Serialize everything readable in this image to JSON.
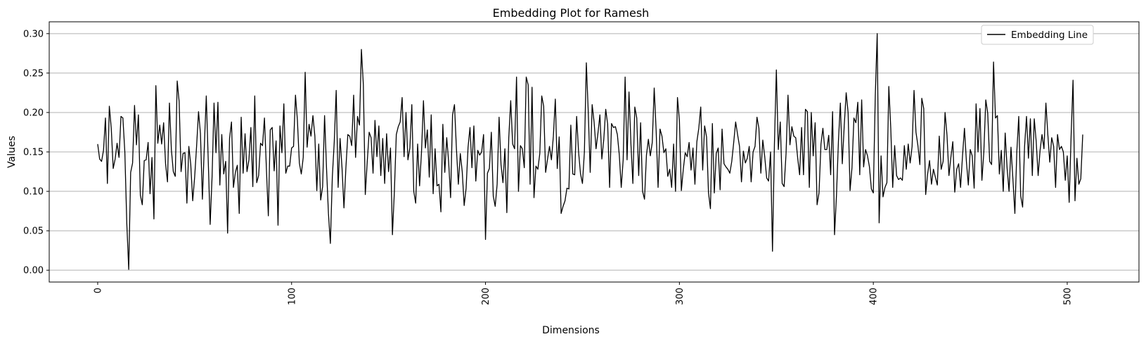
{
  "chart_data": {
    "type": "line",
    "title": "Embedding Plot for Ramesh",
    "xlabel": "Dimensions",
    "ylabel": "Values",
    "xlim": [
      -25,
      537
    ],
    "ylim": [
      -0.015,
      0.315
    ],
    "xticks": [
      0,
      100,
      200,
      300,
      400,
      500
    ],
    "xtick_labels": [
      "0",
      "100",
      "200",
      "300",
      "400",
      "500"
    ],
    "xtick_rotation": 90,
    "yticks": [
      0.0,
      0.05,
      0.1,
      0.15,
      0.2,
      0.25,
      0.3
    ],
    "ytick_labels": [
      "0.00",
      "0.05",
      "0.10",
      "0.15",
      "0.20",
      "0.25",
      "0.30"
    ],
    "grid": "horizontal",
    "legend_position": "top-right",
    "series": [
      {
        "name": "Embedding Line",
        "color": "#000000",
        "x_start": 0,
        "x_step": 1,
        "values": [
          0.16,
          0.141,
          0.138,
          0.152,
          0.193,
          0.11,
          0.208,
          0.18,
          0.129,
          0.141,
          0.161,
          0.143,
          0.195,
          0.193,
          0.15,
          0.06,
          0.001,
          0.124,
          0.136,
          0.209,
          0.159,
          0.197,
          0.095,
          0.083,
          0.139,
          0.14,
          0.162,
          0.097,
          0.143,
          0.065,
          0.234,
          0.161,
          0.184,
          0.16,
          0.187,
          0.135,
          0.112,
          0.212,
          0.153,
          0.125,
          0.119,
          0.24,
          0.214,
          0.125,
          0.148,
          0.149,
          0.085,
          0.157,
          0.134,
          0.088,
          0.118,
          0.157,
          0.201,
          0.173,
          0.09,
          0.157,
          0.221,
          0.14,
          0.058,
          0.119,
          0.212,
          0.149,
          0.213,
          0.108,
          0.172,
          0.122,
          0.138,
          0.047,
          0.167,
          0.188,
          0.105,
          0.124,
          0.133,
          0.072,
          0.194,
          0.123,
          0.173,
          0.125,
          0.14,
          0.181,
          0.106,
          0.221,
          0.111,
          0.12,
          0.161,
          0.158,
          0.193,
          0.129,
          0.069,
          0.178,
          0.181,
          0.126,
          0.164,
          0.057,
          0.183,
          0.149,
          0.211,
          0.123,
          0.132,
          0.132,
          0.155,
          0.157,
          0.222,
          0.19,
          0.136,
          0.122,
          0.143,
          0.251,
          0.156,
          0.185,
          0.17,
          0.196,
          0.17,
          0.101,
          0.16,
          0.089,
          0.106,
          0.196,
          0.13,
          0.072,
          0.034,
          0.118,
          0.163,
          0.228,
          0.105,
          0.167,
          0.13,
          0.079,
          0.13,
          0.172,
          0.17,
          0.158,
          0.222,
          0.143,
          0.195,
          0.184,
          0.28,
          0.235,
          0.096,
          0.137,
          0.175,
          0.168,
          0.123,
          0.19,
          0.144,
          0.183,
          0.12,
          0.167,
          0.11,
          0.173,
          0.125,
          0.155,
          0.045,
          0.1,
          0.172,
          0.182,
          0.188,
          0.219,
          0.144,
          0.2,
          0.14,
          0.155,
          0.21,
          0.1,
          0.085,
          0.16,
          0.107,
          0.15,
          0.215,
          0.155,
          0.178,
          0.118,
          0.197,
          0.097,
          0.154,
          0.107,
          0.109,
          0.074,
          0.185,
          0.124,
          0.168,
          0.137,
          0.092,
          0.197,
          0.21,
          0.154,
          0.109,
          0.148,
          0.125,
          0.082,
          0.104,
          0.156,
          0.181,
          0.13,
          0.183,
          0.113,
          0.152,
          0.146,
          0.15,
          0.172,
          0.039,
          0.123,
          0.129,
          0.175,
          0.094,
          0.081,
          0.109,
          0.194,
          0.134,
          0.111,
          0.154,
          0.073,
          0.168,
          0.215,
          0.16,
          0.154,
          0.245,
          0.1,
          0.158,
          0.154,
          0.13,
          0.245,
          0.235,
          0.109,
          0.232,
          0.092,
          0.132,
          0.128,
          0.148,
          0.221,
          0.208,
          0.124,
          0.141,
          0.157,
          0.14,
          0.17,
          0.217,
          0.129,
          0.169,
          0.072,
          0.081,
          0.088,
          0.104,
          0.103,
          0.184,
          0.122,
          0.121,
          0.195,
          0.15,
          0.122,
          0.11,
          0.15,
          0.263,
          0.2,
          0.124,
          0.21,
          0.188,
          0.154,
          0.174,
          0.197,
          0.141,
          0.166,
          0.204,
          0.185,
          0.105,
          0.186,
          0.181,
          0.182,
          0.172,
          0.146,
          0.105,
          0.14,
          0.245,
          0.14,
          0.226,
          0.16,
          0.11,
          0.207,
          0.193,
          0.12,
          0.187,
          0.1,
          0.09,
          0.146,
          0.166,
          0.145,
          0.162,
          0.231,
          0.177,
          0.105,
          0.179,
          0.17,
          0.149,
          0.154,
          0.119,
          0.128,
          0.105,
          0.16,
          0.1,
          0.219,
          0.19,
          0.101,
          0.128,
          0.149,
          0.144,
          0.162,
          0.127,
          0.155,
          0.109,
          0.163,
          0.18,
          0.207,
          0.127,
          0.183,
          0.169,
          0.098,
          0.078,
          0.186,
          0.098,
          0.148,
          0.155,
          0.102,
          0.179,
          0.135,
          0.131,
          0.128,
          0.123,
          0.138,
          0.162,
          0.188,
          0.172,
          0.157,
          0.112,
          0.151,
          0.136,
          0.142,
          0.157,
          0.112,
          0.15,
          0.157,
          0.194,
          0.18,
          0.123,
          0.165,
          0.144,
          0.117,
          0.113,
          0.15,
          0.024,
          0.16,
          0.254,
          0.153,
          0.188,
          0.11,
          0.106,
          0.148,
          0.222,
          0.159,
          0.182,
          0.17,
          0.168,
          0.142,
          0.121,
          0.181,
          0.121,
          0.204,
          0.201,
          0.105,
          0.2,
          0.145,
          0.187,
          0.083,
          0.098,
          0.16,
          0.18,
          0.153,
          0.153,
          0.171,
          0.121,
          0.201,
          0.045,
          0.095,
          0.163,
          0.212,
          0.135,
          0.183,
          0.225,
          0.2,
          0.101,
          0.13,
          0.193,
          0.187,
          0.213,
          0.121,
          0.216,
          0.131,
          0.153,
          0.145,
          0.131,
          0.103,
          0.098,
          0.22,
          0.3,
          0.06,
          0.145,
          0.093,
          0.105,
          0.111,
          0.233,
          0.18,
          0.105,
          0.158,
          0.12,
          0.115,
          0.117,
          0.114,
          0.158,
          0.128,
          0.16,
          0.136,
          0.157,
          0.228,
          0.175,
          0.158,
          0.134,
          0.218,
          0.205,
          0.096,
          0.122,
          0.139,
          0.109,
          0.128,
          0.118,
          0.108,
          0.17,
          0.128,
          0.138,
          0.2,
          0.171,
          0.12,
          0.143,
          0.163,
          0.099,
          0.128,
          0.135,
          0.105,
          0.145,
          0.18,
          0.138,
          0.108,
          0.153,
          0.145,
          0.104,
          0.211,
          0.15,
          0.205,
          0.114,
          0.15,
          0.216,
          0.199,
          0.138,
          0.134,
          0.264,
          0.193,
          0.196,
          0.122,
          0.152,
          0.1,
          0.174,
          0.129,
          0.1,
          0.156,
          0.115,
          0.072,
          0.15,
          0.195,
          0.094,
          0.08,
          0.157,
          0.195,
          0.142,
          0.192,
          0.12,
          0.192,
          0.163,
          0.12,
          0.152,
          0.172,
          0.154,
          0.212,
          0.172,
          0.137,
          0.168,
          0.157,
          0.105,
          0.172,
          0.153,
          0.157,
          0.15,
          0.114,
          0.145,
          0.086,
          0.17,
          0.241,
          0.088,
          0.142,
          0.109,
          0.116,
          0.172
        ]
      }
    ]
  }
}
